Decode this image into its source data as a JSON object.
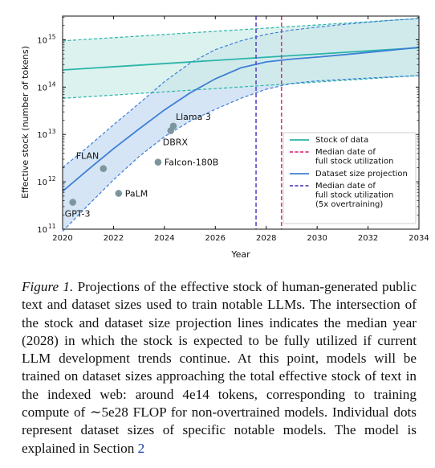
{
  "chart_data": {
    "type": "line",
    "xlabel": "Year",
    "ylabel": "Effective stock (number of tokens)",
    "xlim": [
      2020,
      2034
    ],
    "ylim_log10": [
      11,
      15.5
    ],
    "x_ticks": [
      "2020",
      "2022",
      "2024",
      "2026",
      "2028",
      "2030",
      "2032",
      "2034"
    ],
    "y_ticks": [
      {
        "base": "10",
        "exp": "11",
        "value": 100000000000.0
      },
      {
        "base": "10",
        "exp": "12",
        "value": 1000000000000.0
      },
      {
        "base": "10",
        "exp": "13",
        "value": 10000000000000.0
      },
      {
        "base": "10",
        "exp": "14",
        "value": 100000000000000.0
      },
      {
        "base": "10",
        "exp": "15",
        "value": 1000000000000000.0
      }
    ],
    "log_scale_y": true,
    "grid": false,
    "legend_position": "lower-right",
    "colors": {
      "stock": "#2bb5a8",
      "stock_fill": "#cdece8",
      "projection": "#3f7fd6",
      "projection_fill": "#c7dcf3",
      "median_full": "#e8327c",
      "median_over": "#5a49c6",
      "points": "#7d959c"
    },
    "stock": {
      "name": "Stock of data",
      "x": [
        2020,
        2034
      ],
      "median": [
        230000000000000.0,
        680000000000000.0
      ],
      "upper": [
        950000000000000.0,
        2800000000000000.0
      ],
      "lower": [
        58000000000000.0,
        175000000000000.0
      ]
    },
    "projection": {
      "name": "Dataset size projection",
      "x": [
        2020,
        2021,
        2022,
        2023,
        2024,
        2025,
        2026,
        2027,
        2028,
        2029,
        2030,
        2031,
        2032,
        2033,
        2034
      ],
      "median": [
        630000000000.0,
        1800000000000.0,
        5000000000000.0,
        13000000000000.0,
        33000000000000.0,
        75000000000000.0,
        150000000000000.0,
        255000000000000.0,
        340000000000000.0,
        390000000000000.0,
        430000000000000.0,
        480000000000000.0,
        540000000000000.0,
        610000000000000.0,
        690000000000000.0
      ],
      "upper": [
        2000000000000.0,
        5500000000000.0,
        16000000000000.0,
        45000000000000.0,
        130000000000000.0,
        320000000000000.0,
        620000000000000.0,
        950000000000000.0,
        1300000000000000.0,
        1600000000000000.0,
        1850000000000000.0,
        2100000000000000.0,
        2350000000000000.0,
        2600000000000000.0,
        2800000000000000.0
      ],
      "lower": [
        90000000000.0,
        320000000000.0,
        1100000000000.0,
        3400000000000.0,
        9000000000000.0,
        19000000000000.0,
        34000000000000.0,
        58000000000000.0,
        90000000000000.0,
        120000000000000.0,
        135000000000000.0,
        145000000000000.0,
        155000000000000.0,
        165000000000000.0,
        175000000000000.0
      ]
    },
    "median_full_stock_year": 2028.6,
    "median_full_stock_overtraining_year": 2027.6,
    "models": [
      {
        "name": "GPT-3",
        "x": 2020.4,
        "y": 370000000000.0,
        "label_anchor": "below"
      },
      {
        "name": "FLAN",
        "x": 2021.6,
        "y": 1900000000000.0,
        "label_anchor": "above-left"
      },
      {
        "name": "PaLM",
        "x": 2022.2,
        "y": 570000000000.0,
        "label_anchor": "right"
      },
      {
        "name": "Falcon-180B",
        "x": 2023.75,
        "y": 2600000000000.0,
        "label_anchor": "right"
      },
      {
        "name": "DBRX",
        "x": 2024.25,
        "y": 12000000000000.0,
        "label_anchor": "below"
      },
      {
        "name": "Llama 3",
        "x": 2024.35,
        "y": 15000000000000.0,
        "label_anchor": "above"
      }
    ],
    "legend": [
      {
        "label": "Stock of data",
        "style": "stock"
      },
      {
        "label": "Median date of\nfull stock utilization",
        "style": "median_full"
      },
      {
        "label": "Dataset size projection",
        "style": "projection"
      },
      {
        "label": "Median date of\nfull stock utilization\n(5x overtraining)",
        "style": "median_over"
      }
    ]
  },
  "caption": {
    "label": "Figure 1.",
    "text": " Projections of the effective stock of human-generated public text and dataset sizes used to train notable LLMs.  The intersection of the stock and dataset size projection lines indicates the median year (2028) in which the stock is expected to be fully utilized if current LLM development trends continue. At this point, models will be trained on dataset sizes approaching the total effective stock of text in the indexed web: around 4e14 tokens, corresponding to training compute of ∼5e28 FLOP for non-overtrained models. Individual dots represent dataset sizes of specific notable models. The model is explained in Section ",
    "section": "2"
  }
}
